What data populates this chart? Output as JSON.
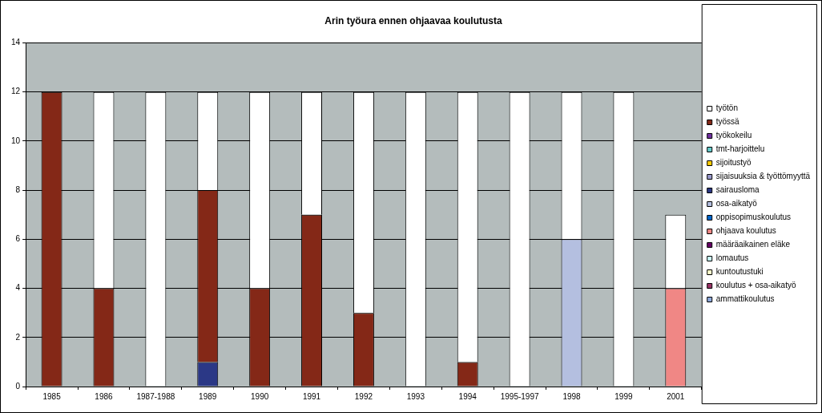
{
  "chart_data": {
    "type": "bar",
    "title": "Arin työura ennen ohjaavaa koulutusta",
    "stacked": true,
    "categories": [
      "1985",
      "1986",
      "1987-1988",
      "1989",
      "1990",
      "1991",
      "1992",
      "1993",
      "1994",
      "1995-1997",
      "1998",
      "1999",
      "2001"
    ],
    "ylim": [
      0,
      14
    ],
    "yticks": [
      0,
      2,
      4,
      6,
      8,
      10,
      12,
      14
    ],
    "grid": "y",
    "legend": "right",
    "series": [
      {
        "name": "ammattikoulutus",
        "color": "#8ea9db",
        "values": [
          null,
          null,
          null,
          null,
          null,
          null,
          null,
          null,
          null,
          null,
          null,
          null,
          null
        ]
      },
      {
        "name": "koulutus + osa-aikatyö",
        "color": "#993366",
        "values": [
          null,
          null,
          null,
          null,
          null,
          null,
          null,
          null,
          null,
          null,
          null,
          null,
          null
        ]
      },
      {
        "name": "kuntoutustuki",
        "color": "#ffffcc",
        "values": [
          null,
          null,
          null,
          null,
          null,
          null,
          null,
          null,
          null,
          null,
          null,
          null,
          null
        ]
      },
      {
        "name": "lomautus",
        "color": "#ccffff",
        "values": [
          null,
          null,
          null,
          null,
          null,
          null,
          null,
          null,
          null,
          null,
          null,
          null,
          null
        ]
      },
      {
        "name": "määräaikainen eläke",
        "color": "#660066",
        "values": [
          null,
          null,
          null,
          null,
          null,
          null,
          null,
          null,
          null,
          null,
          null,
          null,
          null
        ]
      },
      {
        "name": "ohjaava koulutus",
        "color": "#f08785",
        "values": [
          null,
          null,
          null,
          null,
          null,
          null,
          null,
          null,
          null,
          null,
          null,
          null,
          4
        ]
      },
      {
        "name": "oppisopimuskoulutus",
        "color": "#0066cc",
        "values": [
          null,
          null,
          null,
          null,
          null,
          null,
          null,
          null,
          null,
          null,
          null,
          null,
          null
        ]
      },
      {
        "name": "osa-aikatyö",
        "color": "#b4bfe0",
        "values": [
          null,
          null,
          null,
          null,
          null,
          null,
          null,
          null,
          null,
          null,
          6,
          null,
          null
        ]
      },
      {
        "name": "sairausloma",
        "color": "#2b3886",
        "values": [
          null,
          null,
          null,
          1,
          null,
          null,
          null,
          null,
          null,
          null,
          null,
          null,
          null
        ]
      },
      {
        "name": "sijaisuuksia & työttömyyttä",
        "color": "#9999cc",
        "values": [
          null,
          null,
          null,
          null,
          null,
          null,
          null,
          null,
          null,
          null,
          null,
          null,
          null
        ]
      },
      {
        "name": "sijoitustyö",
        "color": "#ffcc00",
        "values": [
          null,
          null,
          null,
          null,
          null,
          null,
          null,
          null,
          null,
          null,
          null,
          null,
          null
        ]
      },
      {
        "name": "tmt-harjoittelu",
        "color": "#66cccc",
        "values": [
          null,
          null,
          null,
          null,
          null,
          null,
          null,
          null,
          null,
          null,
          null,
          null,
          null
        ]
      },
      {
        "name": "työkokeilu",
        "color": "#7030a0",
        "values": [
          null,
          null,
          null,
          null,
          null,
          null,
          null,
          null,
          null,
          null,
          null,
          null,
          null
        ]
      },
      {
        "name": "työssä",
        "color": "#842817",
        "values": [
          12,
          4,
          null,
          7,
          4,
          7,
          3,
          null,
          1,
          null,
          null,
          null,
          null
        ]
      },
      {
        "name": "työtön",
        "color": "#ffffff",
        "values": [
          null,
          8,
          12,
          4,
          8,
          5,
          9,
          12,
          11,
          12,
          6,
          12,
          3
        ]
      }
    ]
  }
}
